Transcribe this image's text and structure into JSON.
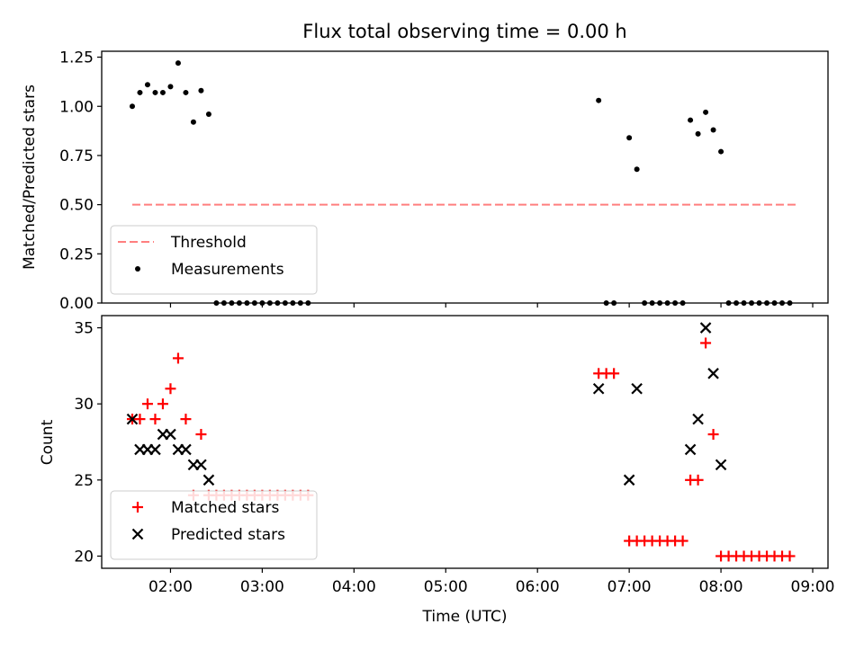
{
  "chart_data": [
    {
      "type": "scatter",
      "title": "Flux total observing time = 0.00 h",
      "xlabel": "",
      "ylabel": "Matched/Predicted stars",
      "ylim": [
        0,
        1.28
      ],
      "yticks": [
        "0.00",
        "0.25",
        "0.50",
        "0.75",
        "1.00",
        "1.25"
      ],
      "legend": "lower-left",
      "series": [
        {
          "name": "Threshold",
          "kind": "dashed-line",
          "color": "#ff7f7f",
          "x": [
            "01:35",
            "08:50"
          ],
          "y": [
            0.5,
            0.5
          ]
        },
        {
          "name": "Measurements",
          "kind": "dot",
          "color": "#000000",
          "x": [
            "01:35",
            "01:40",
            "01:45",
            "01:50",
            "01:55",
            "02:00",
            "02:05",
            "02:10",
            "02:15",
            "02:20",
            "02:25",
            "02:30",
            "02:35",
            "02:40",
            "02:45",
            "02:50",
            "02:55",
            "03:00",
            "03:05",
            "03:10",
            "03:15",
            "03:20",
            "03:25",
            "03:30",
            "06:40",
            "06:45",
            "06:50",
            "07:00",
            "07:05",
            "07:10",
            "07:15",
            "07:20",
            "07:25",
            "07:30",
            "07:35",
            "07:40",
            "07:45",
            "07:50",
            "07:55",
            "08:00",
            "08:05",
            "08:10",
            "08:15",
            "08:20",
            "08:25",
            "08:30",
            "08:35",
            "08:40",
            "08:45"
          ],
          "y": [
            1.0,
            1.07,
            1.11,
            1.07,
            1.07,
            1.1,
            1.22,
            1.07,
            0.92,
            1.08,
            0.96,
            0.0,
            0.0,
            0.0,
            0.0,
            0.0,
            0.0,
            0.0,
            0.0,
            0.0,
            0.0,
            0.0,
            0.0,
            0.0,
            1.03,
            0.0,
            0.0,
            0.84,
            0.68,
            0.0,
            0.0,
            0.0,
            0.0,
            0.0,
            0.0,
            0.93,
            0.86,
            0.97,
            0.88,
            0.77,
            0.0,
            0.0,
            0.0,
            0.0,
            0.0,
            0.0,
            0.0,
            0.0,
            0.0
          ]
        }
      ]
    },
    {
      "type": "scatter",
      "title": "",
      "xlabel": "Time (UTC)",
      "ylabel": "Count",
      "xlim": [
        "01:15",
        "09:10"
      ],
      "xticks": [
        "02:00",
        "03:00",
        "04:00",
        "05:00",
        "06:00",
        "07:00",
        "08:00",
        "09:00"
      ],
      "ylim": [
        19.2,
        35.8
      ],
      "yticks": [
        "20",
        "25",
        "30",
        "35"
      ],
      "legend": "lower-left",
      "series": [
        {
          "name": "Matched stars",
          "marker": "plus",
          "color": "#ff0000",
          "x": [
            "01:35",
            "01:40",
            "01:45",
            "01:50",
            "01:55",
            "02:00",
            "02:05",
            "02:10",
            "02:15",
            "02:20",
            "02:25",
            "02:30",
            "02:35",
            "02:40",
            "02:45",
            "02:50",
            "02:55",
            "03:00",
            "03:05",
            "03:10",
            "03:15",
            "03:20",
            "03:25",
            "03:30",
            "06:40",
            "06:45",
            "06:50",
            "07:00",
            "07:05",
            "07:10",
            "07:15",
            "07:20",
            "07:25",
            "07:30",
            "07:35",
            "07:40",
            "07:45",
            "07:50",
            "07:55",
            "08:00",
            "08:05",
            "08:10",
            "08:15",
            "08:20",
            "08:25",
            "08:30",
            "08:35",
            "08:40",
            "08:45"
          ],
          "y": [
            29,
            29,
            30,
            29,
            30,
            31,
            33,
            29,
            24,
            28,
            24,
            24,
            24,
            24,
            24,
            24,
            24,
            24,
            24,
            24,
            24,
            24,
            24,
            24,
            32,
            32,
            32,
            21,
            21,
            21,
            21,
            21,
            21,
            21,
            21,
            25,
            25,
            34,
            28,
            20,
            20,
            20,
            20,
            20,
            20,
            20,
            20,
            20,
            20
          ]
        },
        {
          "name": "Predicted stars",
          "marker": "x",
          "color": "#000000",
          "x": [
            "01:35",
            "01:40",
            "01:45",
            "01:50",
            "01:55",
            "02:00",
            "02:05",
            "02:10",
            "02:15",
            "02:20",
            "02:25",
            "06:40",
            "07:00",
            "07:05",
            "07:40",
            "07:45",
            "07:50",
            "07:55",
            "08:00"
          ],
          "y": [
            29,
            27,
            27,
            27,
            28,
            28,
            27,
            27,
            26,
            26,
            25,
            31,
            25,
            31,
            27,
            29,
            35,
            32,
            26
          ]
        }
      ]
    }
  ]
}
